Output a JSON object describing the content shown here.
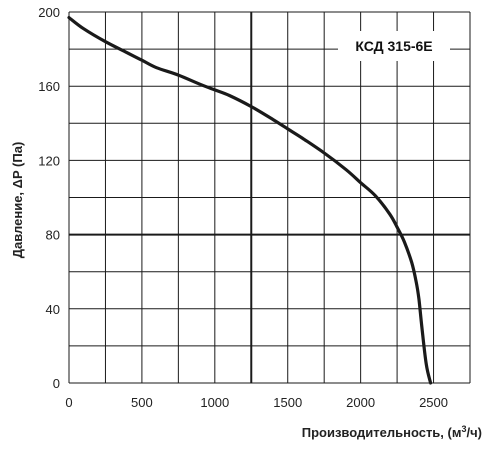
{
  "chart_data": {
    "type": "line",
    "title": "",
    "model_label": "КСД 315-6E",
    "xlabel": "Производительность, (м",
    "xlabel_sup": "3",
    "xlabel_end": "/ч)",
    "ylabel": "Давление, ΔP (Па)",
    "xlim": [
      0,
      2750
    ],
    "ylim": [
      0,
      200
    ],
    "xticks": [
      0,
      500,
      1000,
      1500,
      2000,
      2500
    ],
    "yticks": [
      0,
      40,
      80,
      120,
      160,
      200
    ],
    "grid": true,
    "grid_x_step": 250,
    "grid_y_step": 20,
    "major_gridlines": {
      "x": [
        1250
      ],
      "y": [
        80
      ]
    },
    "series": [
      {
        "x": [
          0,
          100,
          250,
          400,
          500,
          600,
          750,
          900,
          1000,
          1100,
          1250,
          1400,
          1500,
          1600,
          1750,
          1900,
          2000,
          2100,
          2200,
          2250,
          2300,
          2350,
          2380,
          2400,
          2420,
          2450,
          2480
        ],
        "y": [
          197,
          191,
          184,
          178,
          174,
          170,
          166,
          161,
          158,
          155,
          149,
          142,
          137,
          132,
          124,
          115,
          108,
          101,
          91,
          84,
          76,
          65,
          55,
          45,
          30,
          10,
          0
        ],
        "color": "#1a1a1a"
      }
    ]
  }
}
